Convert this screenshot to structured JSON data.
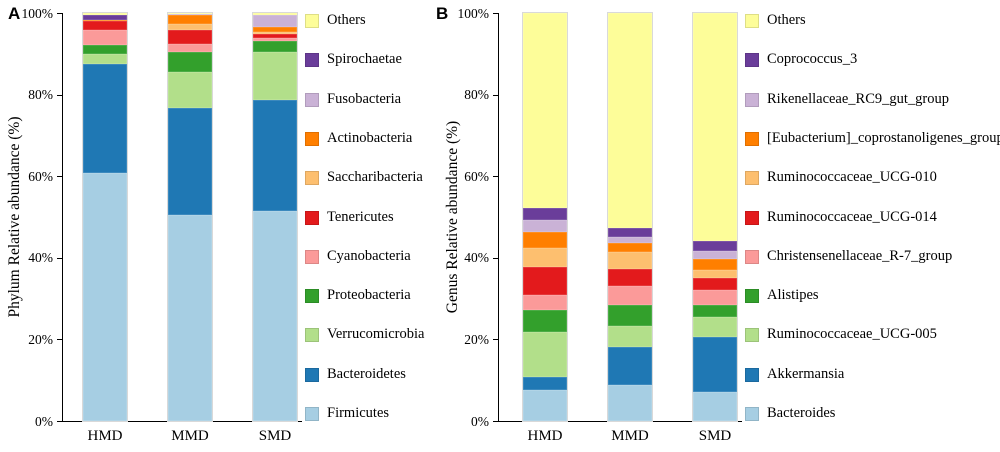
{
  "chart_data": [
    {
      "type": "bar",
      "stacked": true,
      "panel_label": "A",
      "ylabel": "Phylum Relative abundance (%)",
      "xlabel": "",
      "categories": [
        "HMD",
        "MMD",
        "SMD"
      ],
      "ytick_labels": [
        "0%",
        "20%",
        "40%",
        "60%",
        "80%",
        "100%"
      ],
      "ylim": [
        0,
        100
      ],
      "grid": false,
      "legend_position": "right",
      "legend_order": "top_is_last_series",
      "series_bottom_to_top": [
        {
          "name": "Firmicutes",
          "color": "#a6cee3",
          "values": [
            60.8,
            50.5,
            51.5
          ]
        },
        {
          "name": "Bacteroidetes",
          "color": "#1f78b4",
          "values": [
            26.6,
            26.1,
            27.2
          ]
        },
        {
          "name": "Verrucomicrobia",
          "color": "#b2df8a",
          "values": [
            2.5,
            8.9,
            11.7
          ]
        },
        {
          "name": "Proteobacteria",
          "color": "#33a02c",
          "values": [
            2.2,
            4.9,
            2.7
          ]
        },
        {
          "name": "Cyanobacteria",
          "color": "#fb9a99",
          "values": [
            3.7,
            2.1,
            0.7
          ]
        },
        {
          "name": "Tenericutes",
          "color": "#e31a1c",
          "values": [
            2.2,
            3.3,
            1.0
          ]
        },
        {
          "name": "Saccharibacteria",
          "color": "#fdbf6f",
          "values": [
            0.1,
            1.6,
            0.5
          ]
        },
        {
          "name": "Actinobacteria",
          "color": "#ff7f00",
          "values": [
            0.2,
            2.2,
            1.2
          ]
        },
        {
          "name": "Fusobacteria",
          "color": "#cab2d6",
          "values": [
            0.1,
            0.1,
            3.0
          ]
        },
        {
          "name": "Spirochaetae",
          "color": "#6a3d9a",
          "values": [
            1.2,
            0.1,
            0.1
          ]
        },
        {
          "name": "Others",
          "color": "#fdfd99",
          "values": [
            0.4,
            0.2,
            0.4
          ]
        }
      ]
    },
    {
      "type": "bar",
      "stacked": true,
      "panel_label": "B",
      "ylabel": "Genus Relative abundance (%)",
      "xlabel": "",
      "categories": [
        "HMD",
        "MMD",
        "SMD"
      ],
      "ytick_labels": [
        "0%",
        "20%",
        "40%",
        "60%",
        "80%",
        "100%"
      ],
      "ylim": [
        0,
        100
      ],
      "grid": false,
      "legend_position": "right",
      "legend_order": "top_is_last_series",
      "series_bottom_to_top": [
        {
          "name": "Bacteroides",
          "color": "#a6cee3",
          "values": [
            7.6,
            8.8,
            7.2
          ]
        },
        {
          "name": "Akkermansia",
          "color": "#1f78b4",
          "values": [
            3.3,
            9.4,
            13.5
          ]
        },
        {
          "name": "Ruminococcaceae_UCG-005",
          "color": "#b2df8a",
          "values": [
            11.0,
            5.1,
            4.8
          ]
        },
        {
          "name": "Alistipes",
          "color": "#33a02c",
          "values": [
            5.3,
            5.2,
            3.0
          ]
        },
        {
          "name": "Christensenellaceae_R-7_group",
          "color": "#fb9a99",
          "values": [
            3.7,
            4.5,
            3.7
          ]
        },
        {
          "name": "Ruminococcaceae_UCG-014",
          "color": "#e31a1c",
          "values": [
            6.9,
            4.3,
            2.9
          ]
        },
        {
          "name": "Ruminococcaceae_UCG-010",
          "color": "#fdbf6f",
          "values": [
            4.5,
            4.1,
            2.0
          ]
        },
        {
          "name": "[Eubacterium]_coprostanoligenes_group",
          "color": "#ff7f00",
          "values": [
            4.1,
            2.2,
            2.5
          ]
        },
        {
          "name": "Rikenellaceae_RC9_gut_group",
          "color": "#cab2d6",
          "values": [
            2.9,
            1.4,
            2.2
          ]
        },
        {
          "name": "Coprococcus_3",
          "color": "#6a3d9a",
          "values": [
            2.9,
            2.3,
            2.3
          ]
        },
        {
          "name": "Others",
          "color": "#fdfd99",
          "values": [
            47.8,
            52.7,
            55.9
          ]
        }
      ]
    }
  ]
}
